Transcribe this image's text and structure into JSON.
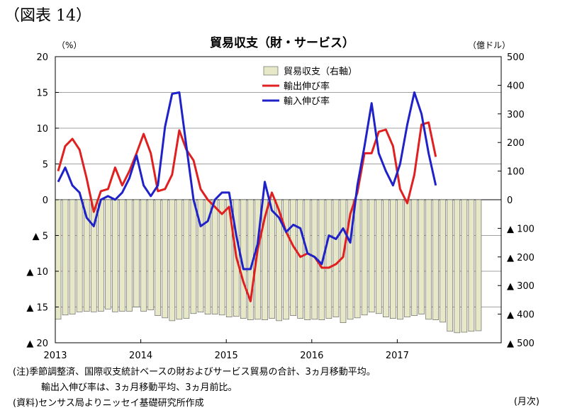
{
  "figure_label": "（図表 14）",
  "notes": {
    "line1": "(注)季節調整済、国際収支統計ベースの財およびサービス貿易の合計、3ヵ月移動平均。",
    "line2": "輸出入伸び率は、3ヵ月移動平均、3ヵ月前比。",
    "source": "(資料)センサス局よりニッセイ基礎研究所作成",
    "x_unit": "(月次)"
  },
  "chart_data": {
    "type": "bar+line",
    "title": "貿易収支（財・サービス）",
    "left_unit": "（%）",
    "right_unit": "（億ドル）",
    "y_left": {
      "range": [
        -20,
        20
      ],
      "ticks": [
        {
          "v": 20,
          "label": "20"
        },
        {
          "v": 15,
          "label": "15"
        },
        {
          "v": 10,
          "label": "10"
        },
        {
          "v": 5,
          "label": "5"
        },
        {
          "v": 0,
          "label": "0"
        },
        {
          "v": -5,
          "label": "▲ 5"
        },
        {
          "v": -10,
          "label": "▲ 10"
        },
        {
          "v": -15,
          "label": "▲ 15"
        },
        {
          "v": -20,
          "label": "▲ 20"
        }
      ]
    },
    "y_right": {
      "range": [
        -500,
        500
      ],
      "ticks": [
        {
          "v": 500,
          "label": "500"
        },
        {
          "v": 400,
          "label": "400"
        },
        {
          "v": 300,
          "label": "300"
        },
        {
          "v": 200,
          "label": "200"
        },
        {
          "v": 100,
          "label": "100"
        },
        {
          "v": 0,
          "label": "0"
        },
        {
          "v": -100,
          "label": "▲ 100"
        },
        {
          "v": -200,
          "label": "▲ 200"
        },
        {
          "v": -300,
          "label": "▲ 300"
        },
        {
          "v": -400,
          "label": "▲ 400"
        },
        {
          "v": -500,
          "label": "▲ 500"
        }
      ]
    },
    "x_labels": [
      "2013",
      "2014",
      "2015",
      "2016",
      "2017"
    ],
    "months_per_year": 12,
    "legend_position": "top-center",
    "gridlines": "horizontal",
    "series": [
      {
        "name": "貿易収支（右軸）",
        "kind": "bar",
        "axis": "right",
        "color": "#e6e8c8",
        "stroke": "#555555",
        "values": [
          -418,
          -403,
          -400,
          -392,
          -390,
          -392,
          -390,
          -382,
          -392,
          -390,
          -390,
          -375,
          -390,
          -385,
          -405,
          -413,
          -423,
          -418,
          -415,
          -398,
          -393,
          -400,
          -400,
          -403,
          -410,
          -408,
          -415,
          -420,
          -418,
          -420,
          -415,
          -423,
          -418,
          -405,
          -415,
          -420,
          -418,
          -420,
          -415,
          -410,
          -430,
          -418,
          -413,
          -403,
          -393,
          -398,
          -410,
          -415,
          -418,
          -410,
          -405,
          -400,
          -418,
          -420,
          -428,
          -460,
          -465,
          -463,
          -460,
          -458
        ]
      },
      {
        "name": "輸出伸び率",
        "kind": "line",
        "axis": "left",
        "color": "#e02020",
        "values": [
          4.0,
          7.5,
          8.5,
          7.0,
          3.0,
          -1.7,
          1.2,
          1.5,
          4.5,
          2.0,
          4.0,
          6.5,
          9.2,
          6.5,
          1.2,
          1.5,
          3.5,
          9.7,
          7.0,
          5.5,
          1.5,
          0.0,
          -1.0,
          -2.0,
          -1.0,
          -8.0,
          -11.5,
          -14.2,
          -7.0,
          -2.5,
          1.0,
          -1.5,
          -4.5,
          -6.5,
          -8.0,
          -7.5,
          -8.0,
          -9.5,
          -9.5,
          -9.0,
          -8.0,
          -2.0,
          1.0,
          6.5,
          6.5,
          9.5,
          9.8,
          7.5,
          1.5,
          -0.5,
          3.5,
          10.5,
          10.8,
          6.0
        ]
      },
      {
        "name": "輸入伸び率",
        "kind": "line",
        "axis": "left",
        "color": "#1f22c8",
        "values": [
          2.5,
          4.5,
          2.0,
          1.0,
          -2.5,
          -3.7,
          0.0,
          0.5,
          0.0,
          1.0,
          3.0,
          6.2,
          2.0,
          0.5,
          2.0,
          10.2,
          14.8,
          15.0,
          7.5,
          0.0,
          -3.7,
          -3.0,
          0.0,
          1.0,
          1.0,
          -5.0,
          -9.7,
          -9.7,
          -6.2,
          2.5,
          -1.5,
          -2.5,
          -4.5,
          -3.5,
          -4.0,
          -7.5,
          -8.0,
          -9.0,
          -5.0,
          -5.5,
          -4.0,
          -6.0,
          2.0,
          7.5,
          13.5,
          6.5,
          4.0,
          2.0,
          5.0,
          10.5,
          15.0,
          12.0,
          6.5,
          2.0
        ]
      }
    ]
  }
}
